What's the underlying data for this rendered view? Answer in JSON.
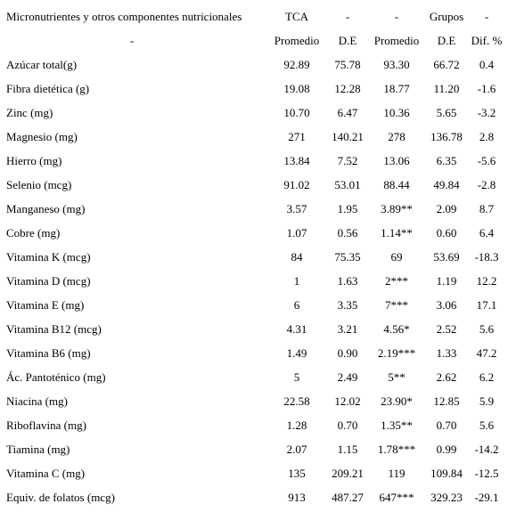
{
  "header": {
    "row1": [
      "Micronutrientes y otros componentes nutricionales",
      "TCA",
      "-",
      "-",
      "Grupos",
      "-"
    ],
    "row2": [
      "-",
      "Promedio",
      "D.E",
      "Promedio",
      "D.E",
      "Dif. %"
    ]
  },
  "rows": [
    [
      "Azúcar total(g)",
      "92.89",
      "75.78",
      "93.30",
      "66.72",
      "0.4"
    ],
    [
      "Fibra dietética (g)",
      "19.08",
      "12.28",
      "18.77",
      "11.20",
      "-1.6"
    ],
    [
      "Zinc (mg)",
      "10.70",
      "6.47",
      "10.36",
      "5.65",
      "-3.2"
    ],
    [
      "Magnesio (mg)",
      "271",
      "140.21",
      "278",
      "136.78",
      "2.8"
    ],
    [
      "Hierro (mg)",
      "13.84",
      "7.52",
      "13.06",
      "6.35",
      "-5.6"
    ],
    [
      "Selenio (mcg)",
      "91.02",
      "53.01",
      "88.44",
      "49.84",
      "-2.8"
    ],
    [
      "Manganeso (mg)",
      "3.57",
      "1.95",
      "3.89**",
      "2.09",
      "8.7"
    ],
    [
      "Cobre (mg)",
      "1.07",
      "0.56",
      "1.14**",
      "0.60",
      "6.4"
    ],
    [
      "Vitamina K (mcg)",
      "84",
      "75.35",
      "69",
      "53.69",
      "-18.3"
    ],
    [
      "Vitamina D (mcg)",
      "1",
      "1.63",
      "2***",
      "1.19",
      "12.2"
    ],
    [
      "Vitamina E (mg)",
      "6",
      "3.35",
      "7***",
      "3.06",
      "17.1"
    ],
    [
      "Vitamina B12 (mcg)",
      "4.31",
      "3.21",
      "4.56*",
      "2.52",
      "5.6"
    ],
    [
      "Vitamina B6 (mg)",
      "1.49",
      "0.90",
      "2.19***",
      "1.33",
      "47.2"
    ],
    [
      "Ác. Pantoténico (mg)",
      "5",
      "2.49",
      "5**",
      "2.62",
      "6.2"
    ],
    [
      "Niacina (mg)",
      "22.58",
      "12.02",
      "23.90*",
      "12.85",
      "5.9"
    ],
    [
      "Riboflavina (mg)",
      "1.28",
      "0.70",
      "1.35**",
      "0.70",
      "5.6"
    ],
    [
      "Tiamina (mg)",
      "2.07",
      "1.15",
      "1.78***",
      "0.99",
      "-14.2"
    ],
    [
      "Vitamina C (mg)",
      "135",
      "209.21",
      "119",
      "109.84",
      "-12.5"
    ],
    [
      "Equiv. de folatos (mcg)",
      "913",
      "487.27",
      "647***",
      "329.23",
      "-29.1"
    ]
  ]
}
